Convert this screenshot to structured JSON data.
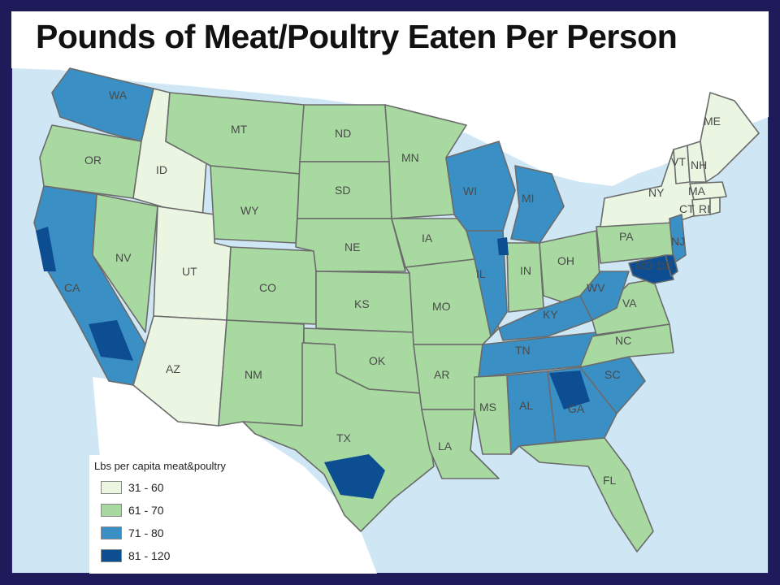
{
  "title": "Pounds of Meat/Poultry Eaten Per Person",
  "colors": {
    "background_frame": "#1f1a5a",
    "water": "#cfe7f4",
    "canada": "#ffffff",
    "bin_31_60": "#eaf6e2",
    "bin_61_70": "#a8d9a0",
    "bin_71_80": "#3a8fc4",
    "bin_81_120": "#0d4d92",
    "border": "#6b6b6b"
  },
  "legend": {
    "title": "Lbs per capita meat&poultry",
    "items": [
      {
        "label": "31 - 60",
        "color": "#eaf6e2"
      },
      {
        "label": "61 - 70",
        "color": "#a8d9a0"
      },
      {
        "label": "71 - 80",
        "color": "#3a8fc4"
      },
      {
        "label": "81 - 120",
        "color": "#0d4d92"
      }
    ]
  },
  "states": [
    {
      "abbr": "WA",
      "bin": "71-80"
    },
    {
      "abbr": "OR",
      "bin": "61-70"
    },
    {
      "abbr": "CA",
      "bin": "71-80"
    },
    {
      "abbr": "ID",
      "bin": "31-60"
    },
    {
      "abbr": "NV",
      "bin": "61-70"
    },
    {
      "abbr": "UT",
      "bin": "31-60"
    },
    {
      "abbr": "AZ",
      "bin": "31-60"
    },
    {
      "abbr": "MT",
      "bin": "61-70"
    },
    {
      "abbr": "WY",
      "bin": "61-70"
    },
    {
      "abbr": "CO",
      "bin": "61-70"
    },
    {
      "abbr": "NM",
      "bin": "61-70"
    },
    {
      "abbr": "ND",
      "bin": "61-70"
    },
    {
      "abbr": "SD",
      "bin": "61-70"
    },
    {
      "abbr": "NE",
      "bin": "61-70"
    },
    {
      "abbr": "KS",
      "bin": "61-70"
    },
    {
      "abbr": "OK",
      "bin": "61-70"
    },
    {
      "abbr": "TX",
      "bin": "61-70"
    },
    {
      "abbr": "MN",
      "bin": "61-70"
    },
    {
      "abbr": "IA",
      "bin": "61-70"
    },
    {
      "abbr": "MO",
      "bin": "61-70"
    },
    {
      "abbr": "AR",
      "bin": "61-70"
    },
    {
      "abbr": "LA",
      "bin": "61-70"
    },
    {
      "abbr": "WI",
      "bin": "71-80"
    },
    {
      "abbr": "IL",
      "bin": "71-80"
    },
    {
      "abbr": "MI",
      "bin": "71-80"
    },
    {
      "abbr": "IN",
      "bin": "61-70"
    },
    {
      "abbr": "OH",
      "bin": "61-70"
    },
    {
      "abbr": "KY",
      "bin": "71-80"
    },
    {
      "abbr": "TN",
      "bin": "71-80"
    },
    {
      "abbr": "MS",
      "bin": "61-70"
    },
    {
      "abbr": "AL",
      "bin": "71-80"
    },
    {
      "abbr": "GA",
      "bin": "71-80"
    },
    {
      "abbr": "FL",
      "bin": "61-70"
    },
    {
      "abbr": "SC",
      "bin": "71-80"
    },
    {
      "abbr": "NC",
      "bin": "61-70"
    },
    {
      "abbr": "VA",
      "bin": "61-70"
    },
    {
      "abbr": "WV",
      "bin": "71-80"
    },
    {
      "abbr": "PA",
      "bin": "61-70"
    },
    {
      "abbr": "NY",
      "bin": "31-60"
    },
    {
      "abbr": "VT",
      "bin": "31-60"
    },
    {
      "abbr": "NH",
      "bin": "31-60"
    },
    {
      "abbr": "ME",
      "bin": "31-60"
    },
    {
      "abbr": "MA",
      "bin": "31-60"
    },
    {
      "abbr": "CT",
      "bin": "31-60"
    },
    {
      "abbr": "RI",
      "bin": "31-60"
    },
    {
      "abbr": "NJ",
      "bin": "71-80"
    },
    {
      "abbr": "MD",
      "bin": "81-120"
    },
    {
      "abbr": "DE",
      "bin": "81-120"
    }
  ]
}
